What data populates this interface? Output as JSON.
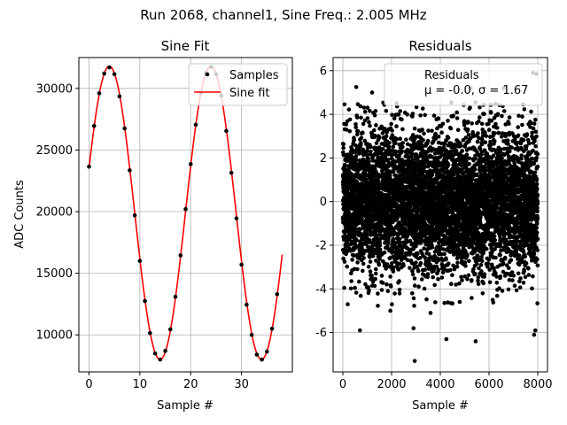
{
  "chart_data": {
    "suptitle": "Run 2068, channel1, Sine Freq.: 2.005 MHz",
    "panels": [
      {
        "type": "line",
        "title": "Sine Fit",
        "xlabel": "Sample #",
        "ylabel": "ADC Counts",
        "xlim": [
          -2,
          40
        ],
        "ylim": [
          7000,
          32500
        ],
        "xticks": [
          0,
          10,
          20,
          30
        ],
        "yticks": [
          10000,
          15000,
          20000,
          25000,
          30000
        ],
        "grid": true,
        "legend": {
          "location": "upper right",
          "entries": [
            "Samples",
            "Sine fit"
          ]
        },
        "series": [
          {
            "name": "Samples",
            "kind": "scatter",
            "color": "#000000",
            "x": [
              0,
              1,
              2,
              3,
              4,
              5,
              6,
              7,
              8,
              9,
              10,
              11,
              12,
              13,
              14,
              15,
              16,
              17,
              18,
              19,
              20,
              21,
              22,
              23,
              24,
              25,
              26,
              27,
              28,
              29,
              30,
              31,
              32,
              33,
              34,
              35,
              36,
              37
            ],
            "y": [
              23650,
              26950,
              29600,
              31200,
              31700,
              31150,
              29350,
              26750,
              23350,
              19700,
              16000,
              12750,
              10150,
              8500,
              8000,
              8700,
              10450,
              13100,
              16450,
              20200,
              23850,
              27050,
              29650,
              31250,
              31750,
              31150,
              29400,
              26550,
              23150,
              19450,
              15700,
              12450,
              10000,
              8400,
              8000,
              8650,
              10500,
              13300
            ]
          },
          {
            "name": "Sine fit",
            "kind": "line",
            "color": "#ff0000",
            "amplitude": 11900,
            "offset": 19900,
            "period_samples": 19.95,
            "phase_rad": 0.31,
            "x_range": [
              0,
              38
            ]
          }
        ]
      },
      {
        "type": "scatter",
        "title": "Residuals",
        "xlabel": "Sample #",
        "xlim": [
          -400,
          8400
        ],
        "ylim": [
          -7.8,
          6.6
        ],
        "xticks": [
          0,
          2000,
          4000,
          6000,
          8000
        ],
        "yticks": [
          -6,
          -4,
          -2,
          0,
          2,
          4,
          6
        ],
        "grid": true,
        "legend": {
          "location": "upper right",
          "entries": [
            "Residuals",
            "μ = -0.0, σ = 1.67"
          ]
        },
        "series": [
          {
            "name": "Residuals",
            "color": "#000000",
            "n_points": 8000,
            "x_range": [
              0,
              7999
            ],
            "mean": 0.0,
            "std": 1.67,
            "distribution_note": "dense noise band roughly between -4 and 4",
            "outliers": [
              {
                "x": 2950,
                "y": -7.3
              },
              {
                "x": 700,
                "y": -5.9
              },
              {
                "x": 2900,
                "y": -5.8
              },
              {
                "x": 4250,
                "y": -6.3
              },
              {
                "x": 5450,
                "y": -6.4
              },
              {
                "x": 7900,
                "y": -5.9
              },
              {
                "x": 7850,
                "y": -6.1
              },
              {
                "x": 7800,
                "y": 5.9
              },
              {
                "x": 7950,
                "y": 5.85
              },
              {
                "x": 550,
                "y": 5.25
              },
              {
                "x": 1200,
                "y": 5.0
              },
              {
                "x": 5250,
                "y": 5.2
              },
              {
                "x": 6600,
                "y": 5.2
              },
              {
                "x": 200,
                "y": -4.7
              },
              {
                "x": 3600,
                "y": -5.1
              },
              {
                "x": 1950,
                "y": -5.0
              }
            ]
          }
        ]
      }
    ]
  }
}
